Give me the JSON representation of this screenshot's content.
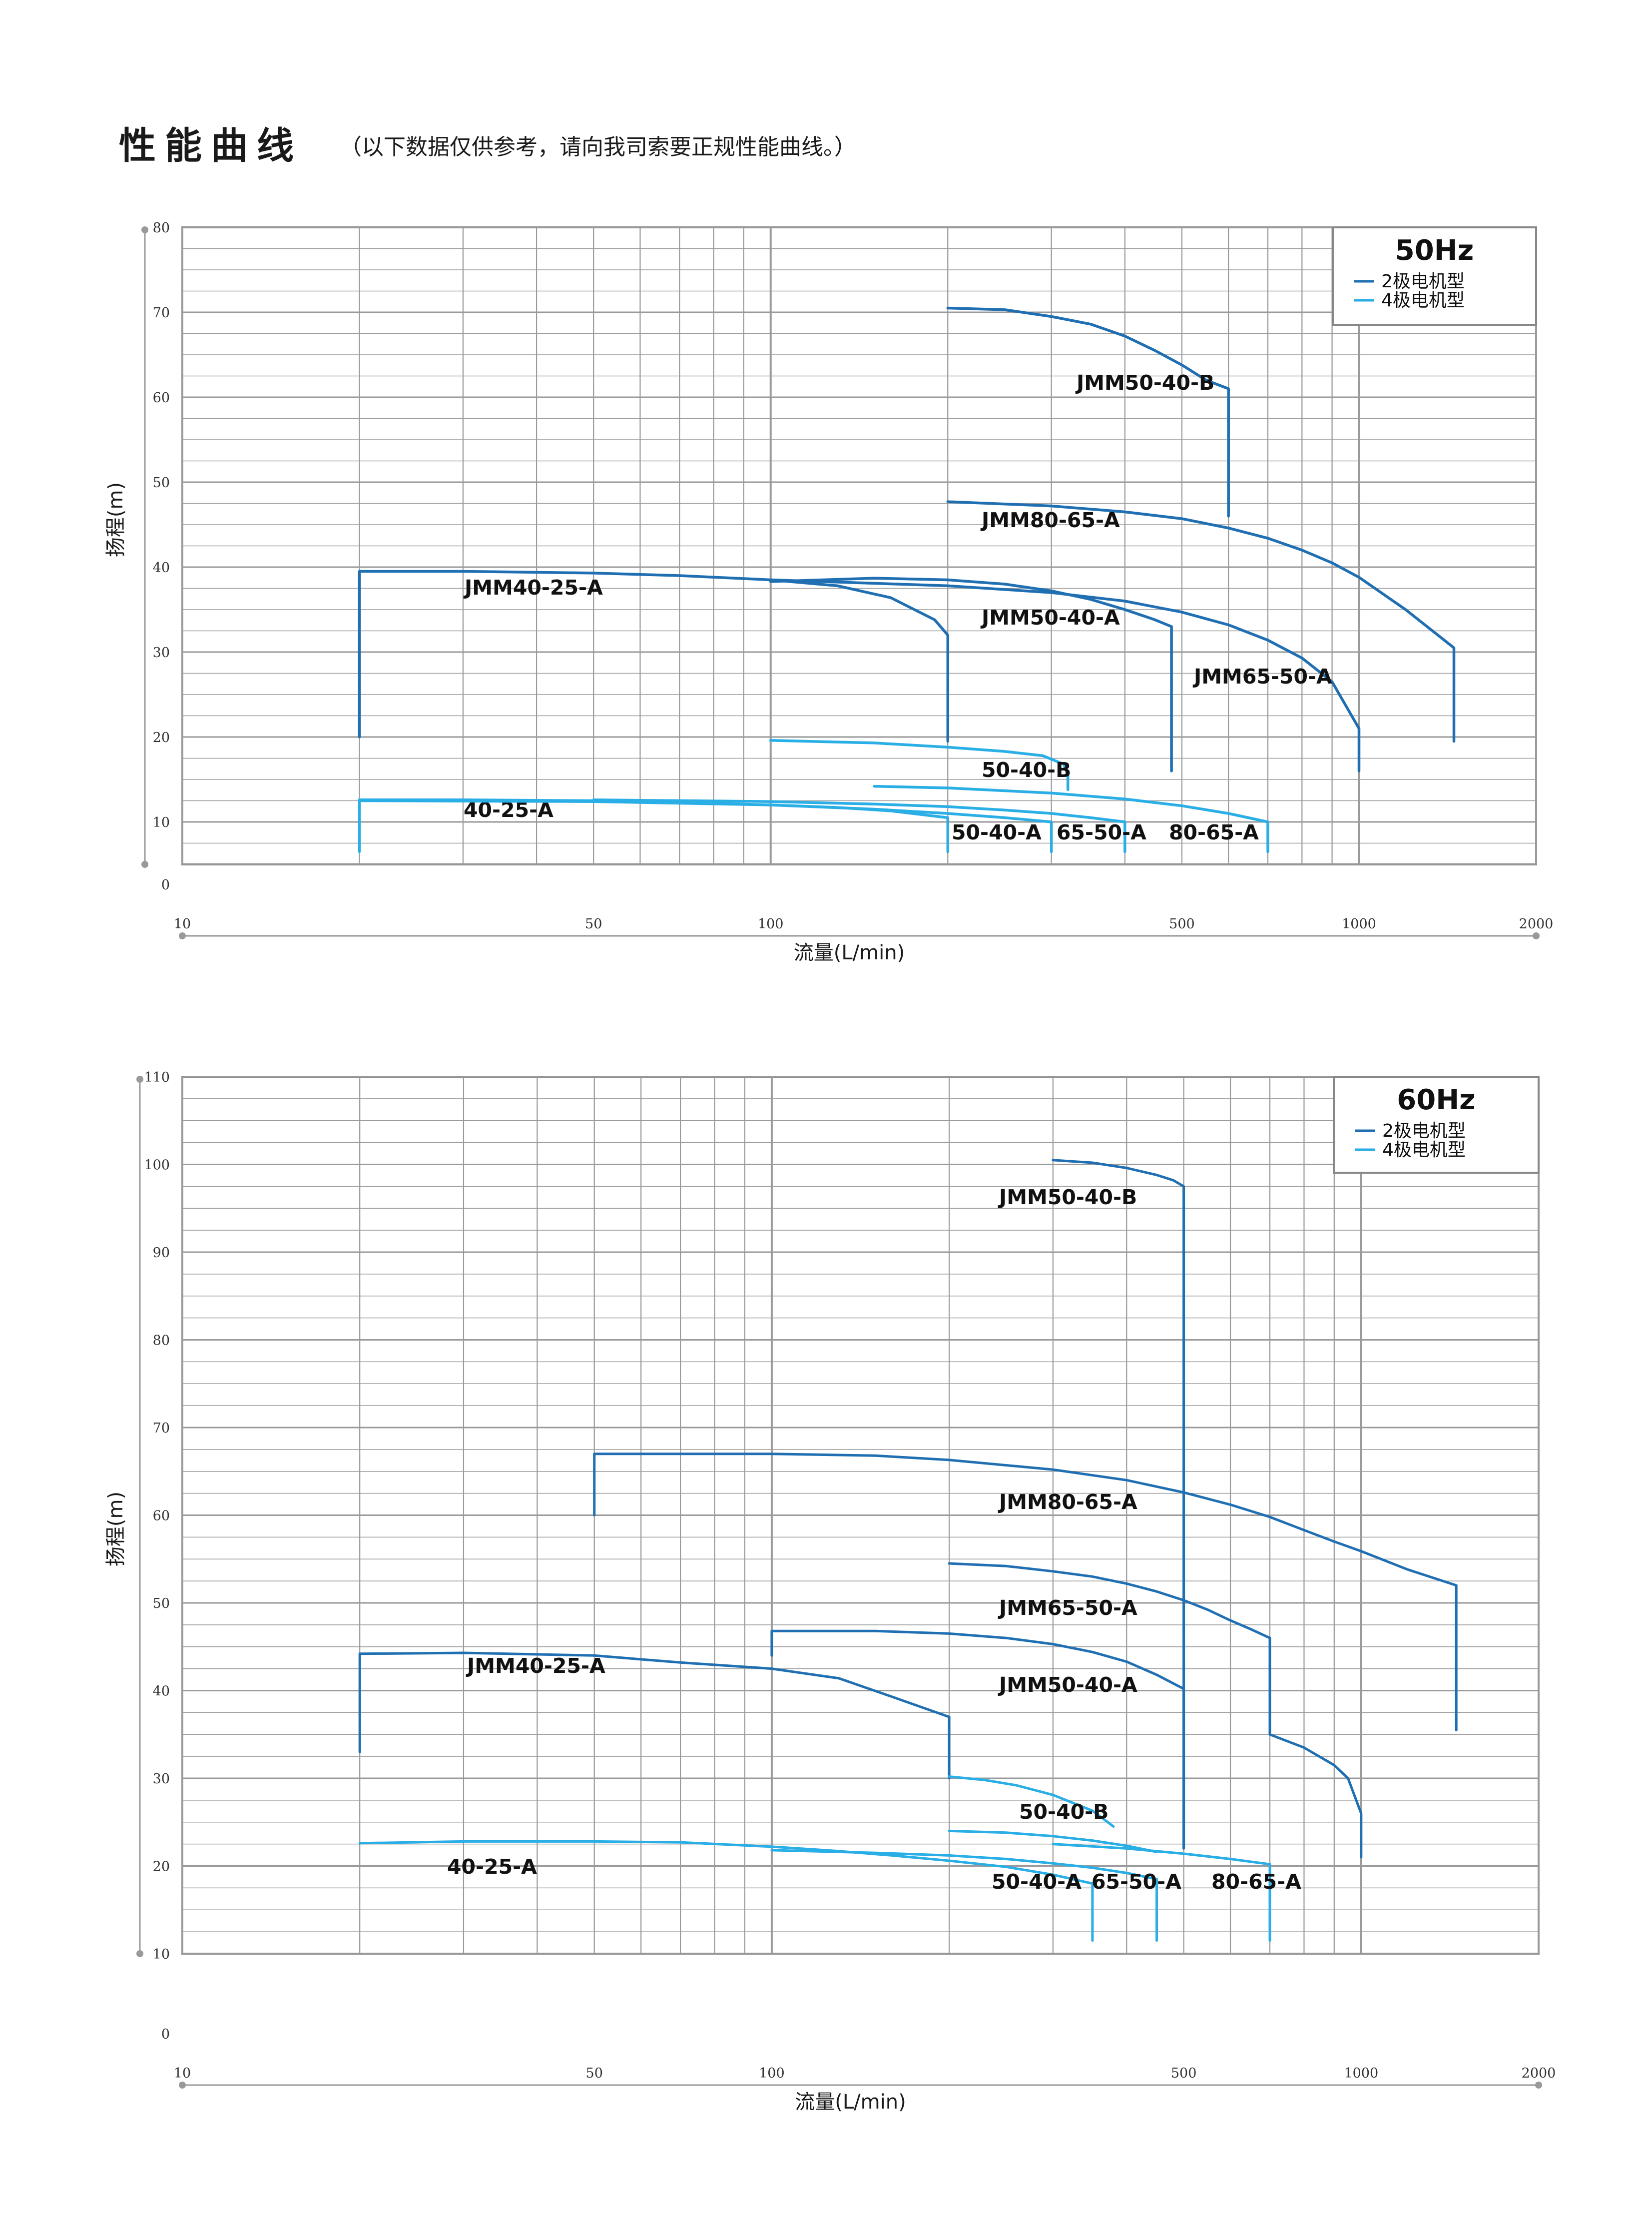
{
  "page": {
    "title": "性能曲线",
    "subtitle": "（以下数据仅供参考，请向我司索要正规性能曲线。）"
  },
  "colors": {
    "two_pole": "#1f6fb2",
    "four_pole": "#2aaee6",
    "grid": "#9a9a9a",
    "frame": "#888888"
  },
  "chart_data": [
    {
      "type": "line",
      "x_scale": "log",
      "xlim": [
        10,
        2000
      ],
      "ylim": [
        5,
        80
      ],
      "grid": true,
      "xlabel": "流量(L/min)",
      "ylabel": "扬程(m)",
      "x_ticks": [
        "10",
        "50",
        "100",
        "500",
        "1000",
        "2000"
      ],
      "y_ticks": [
        "0",
        "10",
        "20",
        "30",
        "40",
        "50",
        "60",
        "70",
        "80"
      ],
      "legend": {
        "title": "50Hz",
        "placement": "top-right",
        "items": [
          "2极电机型",
          "4极电机型"
        ]
      },
      "series": [
        {
          "name": "JMM50-40-B",
          "motor": "2极电机型",
          "x": [
            200,
            250,
            300,
            350,
            400,
            450,
            500,
            550,
            600,
            600
          ],
          "y": [
            70.5,
            70.3,
            69.5,
            68.6,
            67.2,
            65.5,
            63.8,
            62,
            61,
            46
          ]
        },
        {
          "name": "JMM80-65-A",
          "motor": "2极电机型",
          "x": [
            200,
            300,
            400,
            500,
            600,
            700,
            800,
            900,
            1000,
            1200,
            1450,
            1450
          ],
          "y": [
            47.7,
            47.2,
            46.5,
            45.7,
            44.6,
            43.4,
            42,
            40.5,
            38.8,
            35,
            30.5,
            19.5
          ]
        },
        {
          "name": "JMM40-25-A",
          "motor": "2极电机型",
          "x": [
            20,
            20,
            30,
            50,
            70,
            100,
            130,
            160,
            190,
            200,
            200
          ],
          "y": [
            20,
            39.5,
            39.5,
            39.3,
            39,
            38.5,
            37.8,
            36.4,
            33.8,
            32,
            19.5
          ]
        },
        {
          "name": "JMM50-40-A",
          "motor": "2极电机型",
          "x": [
            100,
            150,
            200,
            250,
            300,
            350,
            400,
            450,
            480,
            480
          ],
          "y": [
            38.3,
            38.7,
            38.5,
            38,
            37.2,
            36.2,
            35,
            33.8,
            33,
            16
          ]
        },
        {
          "name": "JMM65-50-A",
          "motor": "2极电机型",
          "x": [
            100,
            200,
            300,
            400,
            500,
            600,
            700,
            800,
            900,
            1000,
            1000
          ],
          "y": [
            38.5,
            37.8,
            37,
            36,
            34.7,
            33.2,
            31.4,
            29.3,
            26.5,
            21,
            16
          ]
        },
        {
          "name": "50-40-B",
          "motor": "4极电机型",
          "x": [
            100,
            150,
            200,
            250,
            290,
            315,
            320,
            320
          ],
          "y": [
            19.6,
            19.3,
            18.8,
            18.3,
            17.8,
            16.8,
            15.5,
            13.8
          ]
        },
        {
          "name": "40-25-A",
          "motor": "4极电机型",
          "x": [
            20,
            20,
            30,
            50,
            70,
            100,
            130,
            160,
            200,
            200
          ],
          "y": [
            6.5,
            12.6,
            12.6,
            12.5,
            12.3,
            12,
            11.7,
            11.3,
            10.5,
            6.5
          ]
        },
        {
          "name": "50-40-A",
          "motor": "4极电机型",
          "x": [
            20,
            50,
            100,
            150,
            200,
            250,
            300,
            300
          ],
          "y": [
            12.5,
            12.4,
            12,
            11.5,
            11,
            10.5,
            10,
            6.5
          ]
        },
        {
          "name": "65-50-A",
          "motor": "4极电机型",
          "x": [
            50,
            100,
            150,
            200,
            250,
            300,
            350,
            400,
            400
          ],
          "y": [
            12.6,
            12.4,
            12.1,
            11.8,
            11.4,
            11,
            10.5,
            10,
            6.5
          ]
        },
        {
          "name": "80-65-A",
          "motor": "4极电机型",
          "x": [
            150,
            200,
            300,
            400,
            500,
            600,
            700,
            700
          ],
          "y": [
            14.2,
            14,
            13.4,
            12.7,
            11.9,
            11,
            10,
            6.5
          ]
        }
      ]
    },
    {
      "type": "line",
      "x_scale": "log",
      "xlim": [
        10,
        2000
      ],
      "ylim": [
        10,
        110
      ],
      "grid": true,
      "xlabel": "流量(L/min)",
      "ylabel": "扬程(m)",
      "x_ticks": [
        "10",
        "50",
        "100",
        "500",
        "1000",
        "2000"
      ],
      "y_ticks": [
        "0",
        "10",
        "20",
        "30",
        "40",
        "50",
        "60",
        "70",
        "80",
        "90",
        "100",
        "110"
      ],
      "legend": {
        "title": "60Hz",
        "placement": "top-right",
        "items": [
          "2极电机型",
          "4极电机型"
        ]
      },
      "series": [
        {
          "name": "JMM50-40-B",
          "motor": "2极电机型",
          "x": [
            300,
            350,
            400,
            450,
            480,
            500,
            500
          ],
          "y": [
            100.5,
            100.2,
            99.6,
            98.8,
            98.2,
            97.5,
            22
          ]
        },
        {
          "name": "JMM80-65-A",
          "motor": "2极电机型",
          "x": [
            50,
            50,
            100,
            150,
            200,
            300,
            400,
            500,
            600,
            700,
            800,
            900,
            1000,
            1200,
            1450,
            1450
          ],
          "y": [
            60,
            67,
            67,
            66.8,
            66.3,
            65.2,
            64,
            62.6,
            61.2,
            59.8,
            58.3,
            57,
            55.9,
            53.8,
            52,
            35.5
          ]
        },
        {
          "name": "JMM65-50-A",
          "motor": "2极电机型",
          "x": [
            200,
            250,
            300,
            350,
            400,
            450,
            500,
            550,
            600,
            650,
            700,
            700,
            800,
            900,
            950,
            1000,
            1000
          ],
          "y": [
            54.5,
            54.2,
            53.6,
            53,
            52.2,
            51.3,
            50.3,
            49.2,
            48,
            47,
            46,
            35,
            33.5,
            31.5,
            30,
            26,
            21
          ]
        },
        {
          "name": "JMM40-25-A",
          "motor": "2极电机型",
          "x": [
            20,
            20,
            30,
            50,
            70,
            100,
            130,
            160,
            200,
            200
          ],
          "y": [
            33,
            44.2,
            44.3,
            44,
            43.2,
            42.5,
            41.4,
            39.3,
            37,
            30
          ]
        },
        {
          "name": "JMM50-40-A",
          "motor": "2极电机型",
          "x": [
            100,
            100,
            150,
            200,
            250,
            300,
            350,
            400,
            450,
            500,
            500
          ],
          "y": [
            44,
            46.8,
            46.8,
            46.5,
            46,
            45.3,
            44.4,
            43.3,
            41.8,
            40.2,
            22
          ]
        },
        {
          "name": "50-40-B",
          "motor": "4极电机型",
          "x": [
            200,
            230,
            260,
            300,
            350,
            380
          ],
          "y": [
            30.2,
            29.8,
            29.2,
            28.1,
            26.3,
            24.5
          ]
        },
        {
          "name": "40-25-A",
          "motor": "4极电机型",
          "x": [
            20,
            30,
            50,
            70,
            100,
            130,
            160,
            200,
            250,
            300,
            350,
            350
          ],
          "y": [
            22.6,
            22.8,
            22.8,
            22.7,
            22.2,
            21.7,
            21.2,
            20.6,
            19.9,
            19,
            18,
            11.5
          ]
        },
        {
          "name": "50-40-A",
          "motor": "4极电机型",
          "x": [
            100,
            150,
            200,
            250,
            300,
            350,
            400,
            450,
            450
          ],
          "y": [
            21.8,
            21.5,
            21.2,
            20.8,
            20.3,
            19.8,
            19.2,
            18.5,
            11.5
          ]
        },
        {
          "name": "65-50-A",
          "motor": "4极电机型",
          "x": [
            200,
            250,
            300,
            350,
            400,
            450
          ],
          "y": [
            24,
            23.8,
            23.4,
            22.9,
            22.3,
            21.6
          ]
        },
        {
          "name": "80-65-A",
          "motor": "4极电机型",
          "x": [
            300,
            400,
            500,
            600,
            700,
            700
          ],
          "y": [
            22.5,
            22,
            21.4,
            20.8,
            20.2,
            11.5
          ]
        }
      ]
    }
  ]
}
